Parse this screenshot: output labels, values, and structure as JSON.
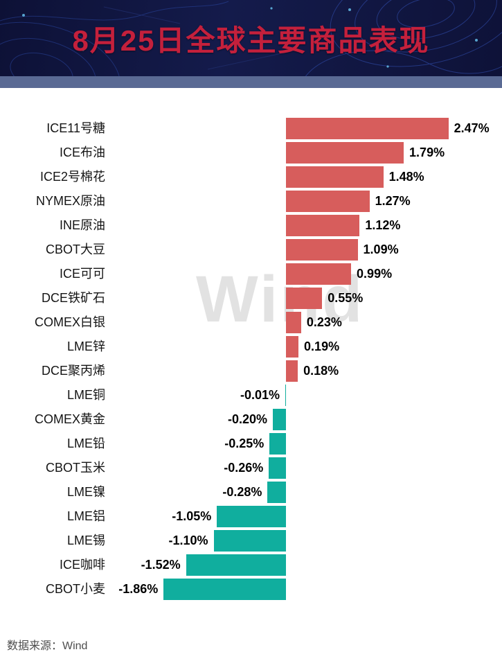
{
  "header": {
    "title": "8月25日全球主要商品表现"
  },
  "watermark": "Wind",
  "footer": {
    "source": "数据来源：Wind"
  },
  "chart_data": {
    "type": "bar",
    "orientation": "horizontal",
    "title": "8月25日全球主要商品表现",
    "xlabel": "",
    "ylabel": "",
    "unit": "%",
    "xlim": [
      -2.0,
      2.6
    ],
    "grid": false,
    "legend": false,
    "categories": [
      "ICE11号糖",
      "ICE布油",
      "ICE2号棉花",
      "NYMEX原油",
      "INE原油",
      "CBOT大豆",
      "ICE可可",
      "DCE铁矿石",
      "COMEX白银",
      "LME锌",
      "DCE聚丙烯",
      "LME铜",
      "COMEX黄金",
      "LME铅",
      "CBOT玉米",
      "LME镍",
      "LME铝",
      "LME锡",
      "ICE咖啡",
      "CBOT小麦"
    ],
    "values": [
      2.47,
      1.79,
      1.48,
      1.27,
      1.12,
      1.09,
      0.99,
      0.55,
      0.23,
      0.19,
      0.18,
      -0.01,
      -0.2,
      -0.25,
      -0.26,
      -0.28,
      -1.05,
      -1.1,
      -1.52,
      -1.86
    ],
    "value_labels": [
      "2.47%",
      "1.79%",
      "1.48%",
      "1.27%",
      "1.12%",
      "1.09%",
      "0.99%",
      "0.55%",
      "0.23%",
      "0.19%",
      "0.18%",
      "-0.01%",
      "-0.20%",
      "-0.25%",
      "-0.26%",
      "-0.28%",
      "-1.05%",
      "-1.10%",
      "-1.52%",
      "-1.86%"
    ],
    "positive_color": "#d75d5c",
    "negative_color": "#10ae9e",
    "source": "Wind"
  }
}
